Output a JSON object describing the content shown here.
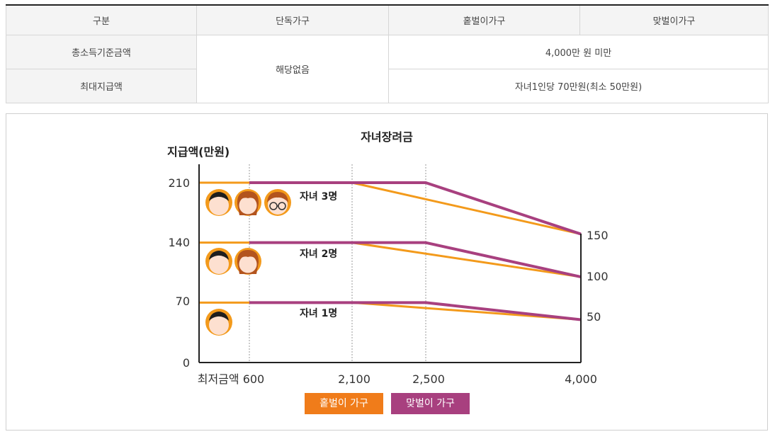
{
  "table": {
    "headers": [
      "구분",
      "단독가구",
      "홑벌이가구",
      "맞벌이가구"
    ],
    "rows": [
      {
        "label": "총소득기준금액",
        "value": "4,000만 원 미만"
      },
      {
        "label": "최대지급액",
        "value": "자녀1인당 70만원(최소 50만원)"
      }
    ],
    "single_value": "해당없음"
  },
  "chart_data": {
    "type": "line",
    "title": "자녀장려금",
    "ylabel": "지급액(만원)",
    "x_ticks": [
      "최저금액 600",
      "2,100",
      "2,500",
      "4,000"
    ],
    "y_ticks": [
      "0",
      "70",
      "140",
      "210"
    ],
    "right_labels": [
      "150",
      "100",
      "50"
    ],
    "ylim": [
      0,
      210
    ],
    "groups": [
      {
        "label": "자녀 3명",
        "single": {
          "x": [
            0,
            2100,
            4000
          ],
          "y": [
            210,
            210,
            150
          ]
        },
        "dual": {
          "x": [
            600,
            2500,
            4000
          ],
          "y": [
            210,
            210,
            150
          ]
        }
      },
      {
        "label": "자녀 2명",
        "single": {
          "x": [
            0,
            2100,
            4000
          ],
          "y": [
            140,
            140,
            100
          ]
        },
        "dual": {
          "x": [
            600,
            2500,
            4000
          ],
          "y": [
            140,
            140,
            100
          ]
        }
      },
      {
        "label": "자녀 1명",
        "single": {
          "x": [
            0,
            2100,
            4000
          ],
          "y": [
            70,
            70,
            50
          ]
        },
        "dual": {
          "x": [
            600,
            2500,
            4000
          ],
          "y": [
            70,
            70,
            50
          ]
        }
      }
    ],
    "legend": [
      {
        "name": "홑벌이 가구",
        "color": "#f07c1a"
      },
      {
        "name": "맞벌이 가구",
        "color": "#a8407f"
      }
    ],
    "colors": {
      "single": "#f39a1b",
      "dual": "#a8407f"
    }
  }
}
